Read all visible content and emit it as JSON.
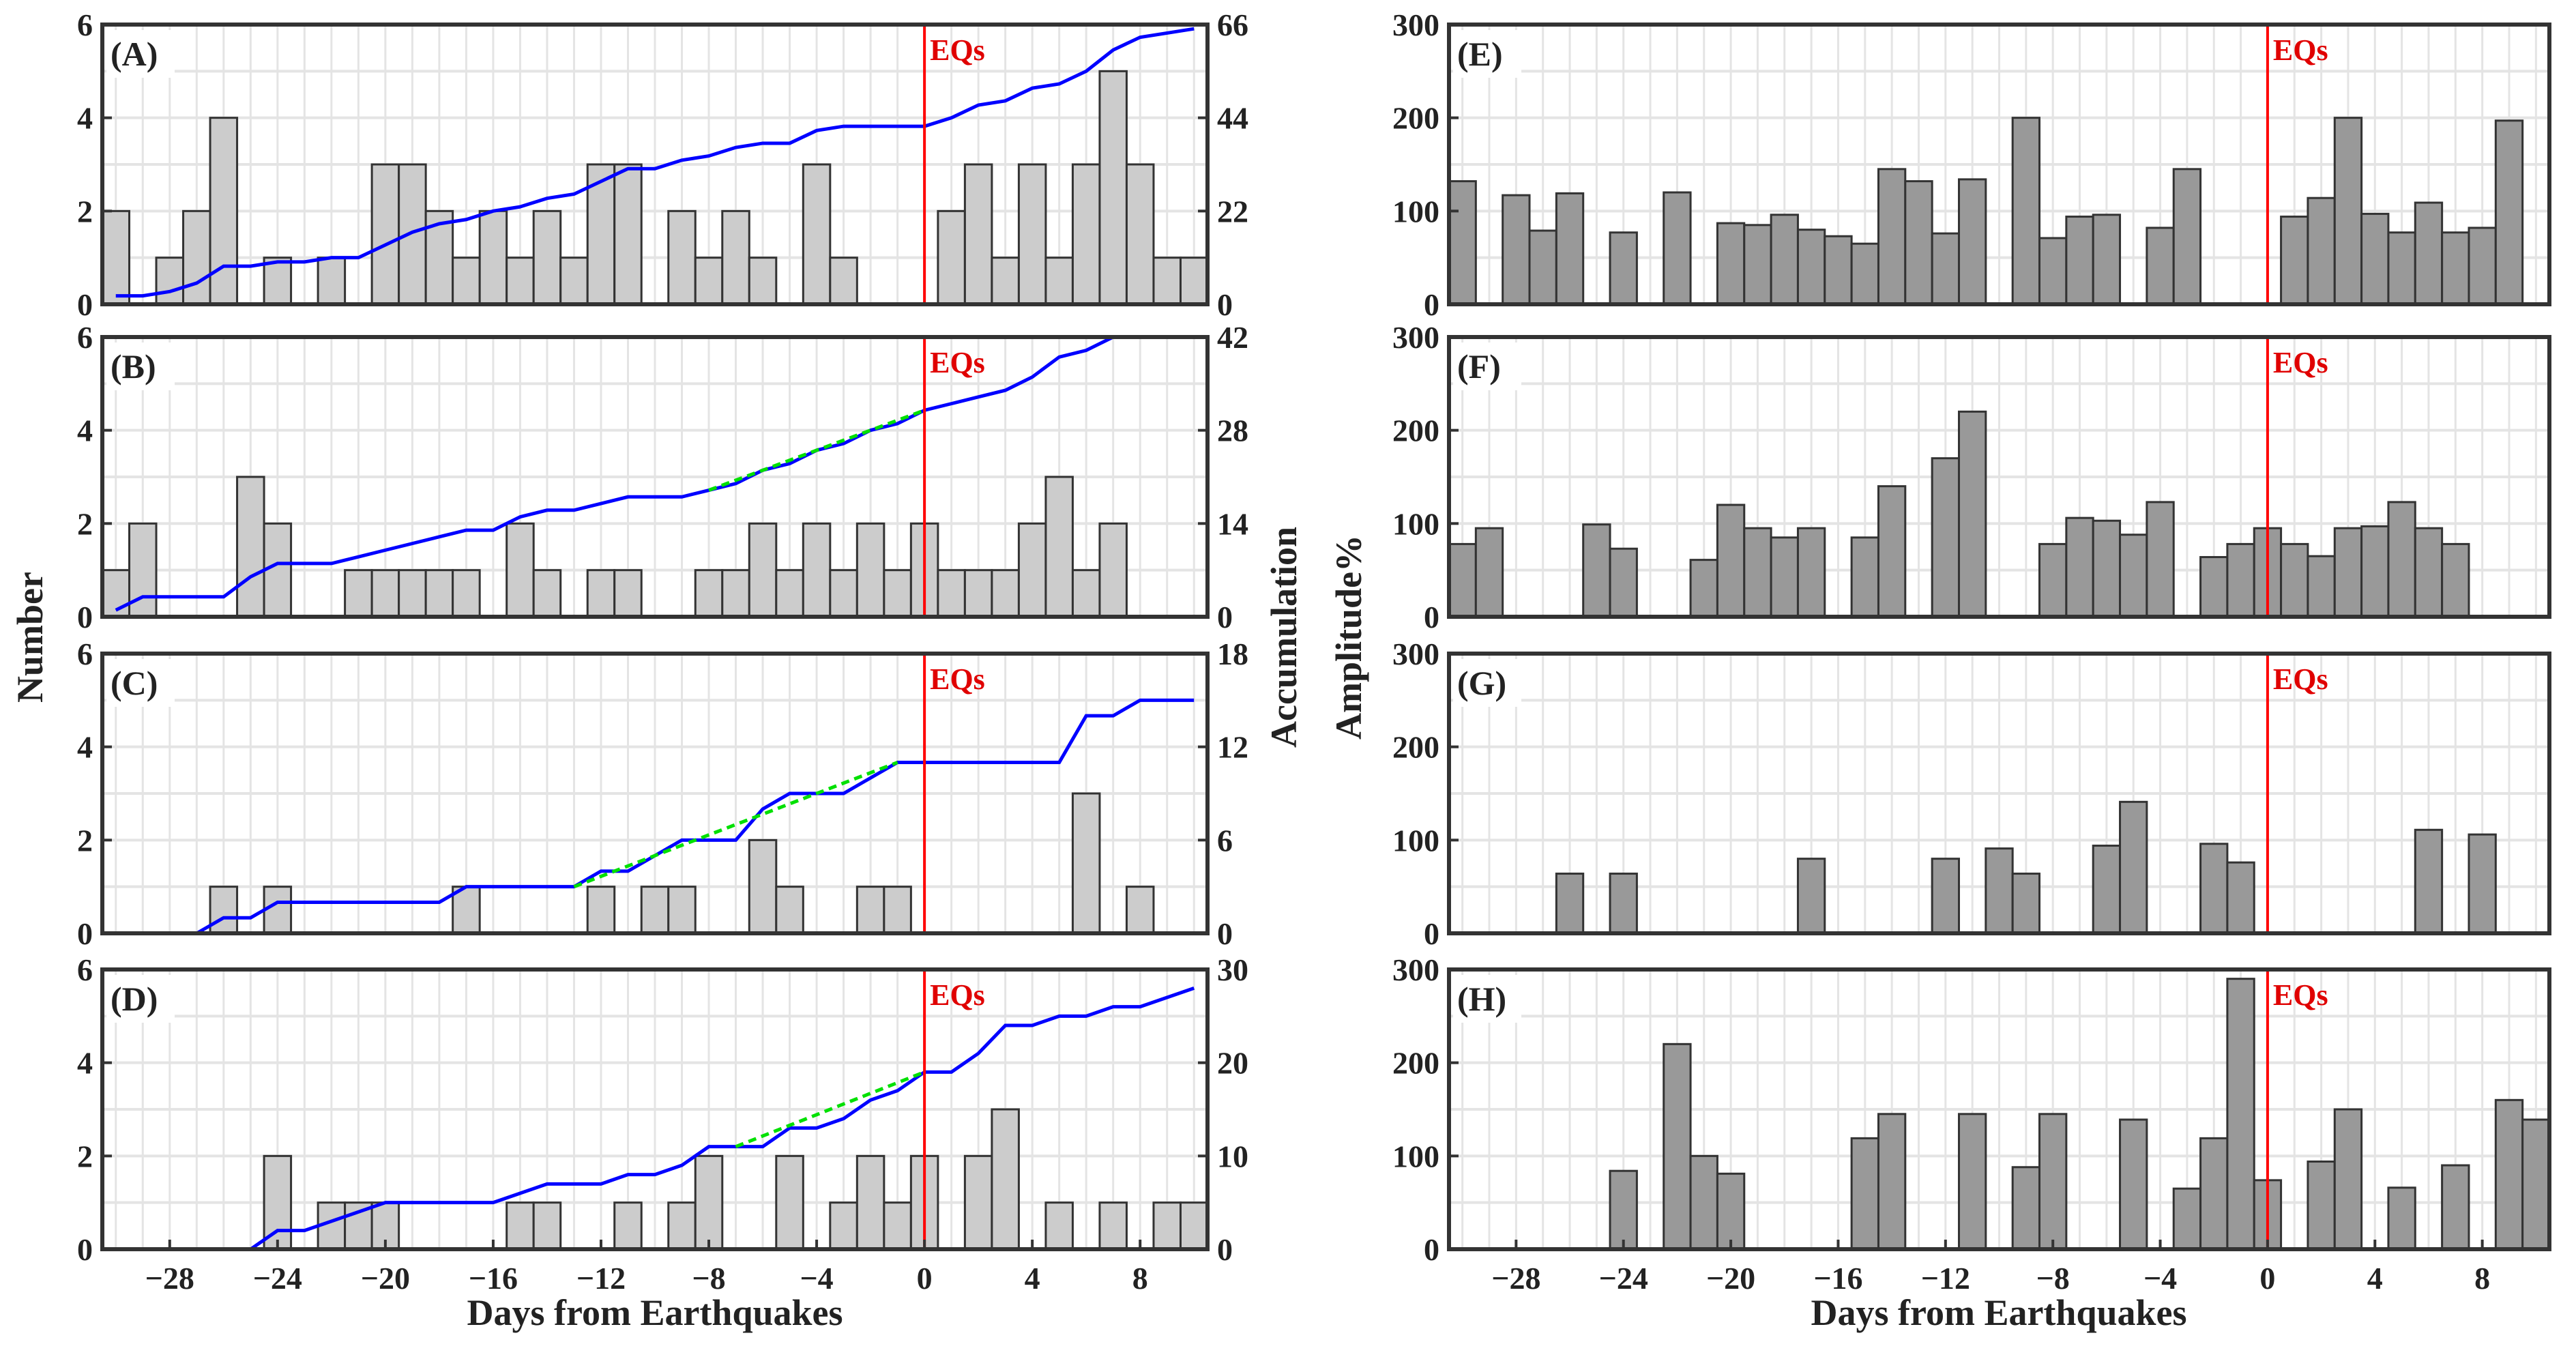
{
  "figure": {
    "x_title": "Days from Earthquakes",
    "left_ylabel": "Number",
    "mid_ylabel": "Accumulation",
    "right_ylabel": "Amplitude%",
    "eq_label": "EQs",
    "x_ticks": [
      "−28",
      "−24",
      "−20",
      "−16",
      "−12",
      "−8",
      "−4",
      "0",
      "4",
      "8"
    ]
  },
  "colors": {
    "count_bar": "#cccccc",
    "amp_bar": "#999999",
    "bar_edge": "#333333",
    "cumulative": "#0000ff",
    "fit": "#00e000",
    "eq_line": "#ff0000",
    "grid": "#e4e4e4"
  },
  "chart_data": [
    {
      "type": "bar",
      "label": "(A)",
      "days_from": -30,
      "days_to": 10,
      "ylim": [
        0,
        6
      ],
      "yticks": [
        "0",
        "2",
        "4",
        "6"
      ],
      "y2lim": [
        0,
        66
      ],
      "y2ticks": [
        "0",
        "22",
        "44",
        "66"
      ],
      "cumulative": true,
      "fit": null,
      "values": [
        2,
        0,
        1,
        2,
        4,
        0,
        1,
        0,
        1,
        0,
        3,
        3,
        2,
        1,
        2,
        1,
        2,
        1,
        3,
        3,
        0,
        2,
        1,
        2,
        1,
        0,
        3,
        1,
        0,
        0,
        0,
        2,
        3,
        1,
        3,
        1,
        3,
        5,
        3,
        1,
        1
      ]
    },
    {
      "type": "bar",
      "label": "(B)",
      "days_from": -30,
      "days_to": 10,
      "ylim": [
        0,
        6
      ],
      "yticks": [
        "0",
        "2",
        "4",
        "6"
      ],
      "y2lim": [
        0,
        42
      ],
      "y2ticks": [
        "0",
        "14",
        "28",
        "42"
      ],
      "cumulative": true,
      "fit": [
        -8,
        0
      ],
      "values": [
        1,
        2,
        0,
        0,
        0,
        3,
        2,
        0,
        0,
        1,
        1,
        1,
        1,
        1,
        0,
        2,
        1,
        0,
        1,
        1,
        0,
        0,
        1,
        1,
        2,
        1,
        2,
        1,
        2,
        1,
        2,
        1,
        1,
        1,
        2,
        3,
        1,
        2,
        0,
        0,
        0
      ]
    },
    {
      "type": "bar",
      "label": "(C)",
      "days_from": -30,
      "days_to": 10,
      "ylim": [
        0,
        6
      ],
      "yticks": [
        "0",
        "2",
        "4",
        "6"
      ],
      "y2lim": [
        0,
        18
      ],
      "y2ticks": [
        "0",
        "6",
        "12",
        "18"
      ],
      "cumulative": true,
      "fit": [
        -13,
        -1
      ],
      "values": [
        0,
        0,
        0,
        0,
        1,
        0,
        1,
        0,
        0,
        0,
        0,
        0,
        0,
        1,
        0,
        0,
        0,
        0,
        1,
        0,
        1,
        1,
        0,
        0,
        2,
        1,
        0,
        0,
        1,
        1,
        0,
        0,
        0,
        0,
        0,
        0,
        3,
        0,
        1,
        0,
        0
      ]
    },
    {
      "type": "bar",
      "label": "(D)",
      "days_from": -30,
      "days_to": 10,
      "ylim": [
        0,
        6
      ],
      "yticks": [
        "0",
        "2",
        "4",
        "6"
      ],
      "y2lim": [
        0,
        30
      ],
      "y2ticks": [
        "0",
        "10",
        "20",
        "30"
      ],
      "cumulative": true,
      "fit": [
        -7,
        0
      ],
      "values": [
        0,
        0,
        0,
        0,
        0,
        0,
        2,
        0,
        1,
        1,
        1,
        0,
        0,
        0,
        0,
        1,
        1,
        0,
        0,
        1,
        0,
        1,
        2,
        0,
        0,
        2,
        0,
        1,
        2,
        1,
        2,
        0,
        2,
        3,
        0,
        1,
        0,
        1,
        0,
        1,
        1
      ]
    },
    {
      "type": "bar",
      "label": "(E)",
      "days_from": -30,
      "days_to": 10,
      "ylim": [
        0,
        300
      ],
      "yticks": [
        "0",
        "100",
        "200",
        "300"
      ],
      "values": [
        132,
        0,
        117,
        79,
        119,
        0,
        77,
        0,
        120,
        0,
        87,
        85,
        96,
        80,
        73,
        65,
        145,
        132,
        76,
        134,
        0,
        200,
        71,
        94,
        96,
        0,
        82,
        145,
        0,
        0,
        0,
        94,
        114,
        200,
        97,
        77,
        109,
        77,
        82,
        197,
        0
      ]
    },
    {
      "type": "bar",
      "label": "(F)",
      "days_from": -30,
      "days_to": 10,
      "ylim": [
        0,
        300
      ],
      "yticks": [
        "0",
        "100",
        "200",
        "300"
      ],
      "values": [
        78,
        95,
        0,
        0,
        0,
        99,
        73,
        0,
        0,
        61,
        120,
        95,
        85,
        95,
        0,
        85,
        140,
        0,
        170,
        220,
        0,
        0,
        78,
        106,
        103,
        88,
        123,
        0,
        64,
        78,
        95,
        78,
        65,
        95,
        97,
        123,
        95,
        78,
        0,
        0,
        0
      ]
    },
    {
      "type": "bar",
      "label": "(G)",
      "days_from": -30,
      "days_to": 10,
      "ylim": [
        0,
        300
      ],
      "yticks": [
        "0",
        "100",
        "200",
        "300"
      ],
      "values": [
        0,
        0,
        0,
        0,
        64,
        0,
        64,
        0,
        0,
        0,
        0,
        0,
        0,
        80,
        0,
        0,
        0,
        0,
        80,
        0,
        91,
        64,
        0,
        0,
        94,
        141,
        0,
        0,
        96,
        76,
        0,
        0,
        0,
        0,
        0,
        0,
        111,
        0,
        106,
        0,
        0
      ]
    },
    {
      "type": "bar",
      "label": "(H)",
      "days_from": -30,
      "days_to": 10,
      "ylim": [
        0,
        300
      ],
      "yticks": [
        "0",
        "100",
        "200",
        "300"
      ],
      "values": [
        0,
        0,
        0,
        0,
        0,
        0,
        84,
        0,
        220,
        100,
        81,
        0,
        0,
        0,
        0,
        119,
        145,
        0,
        0,
        145,
        0,
        88,
        145,
        0,
        0,
        139,
        0,
        65,
        119,
        290,
        74,
        0,
        94,
        150,
        0,
        66,
        0,
        90,
        0,
        160,
        139
      ]
    }
  ]
}
